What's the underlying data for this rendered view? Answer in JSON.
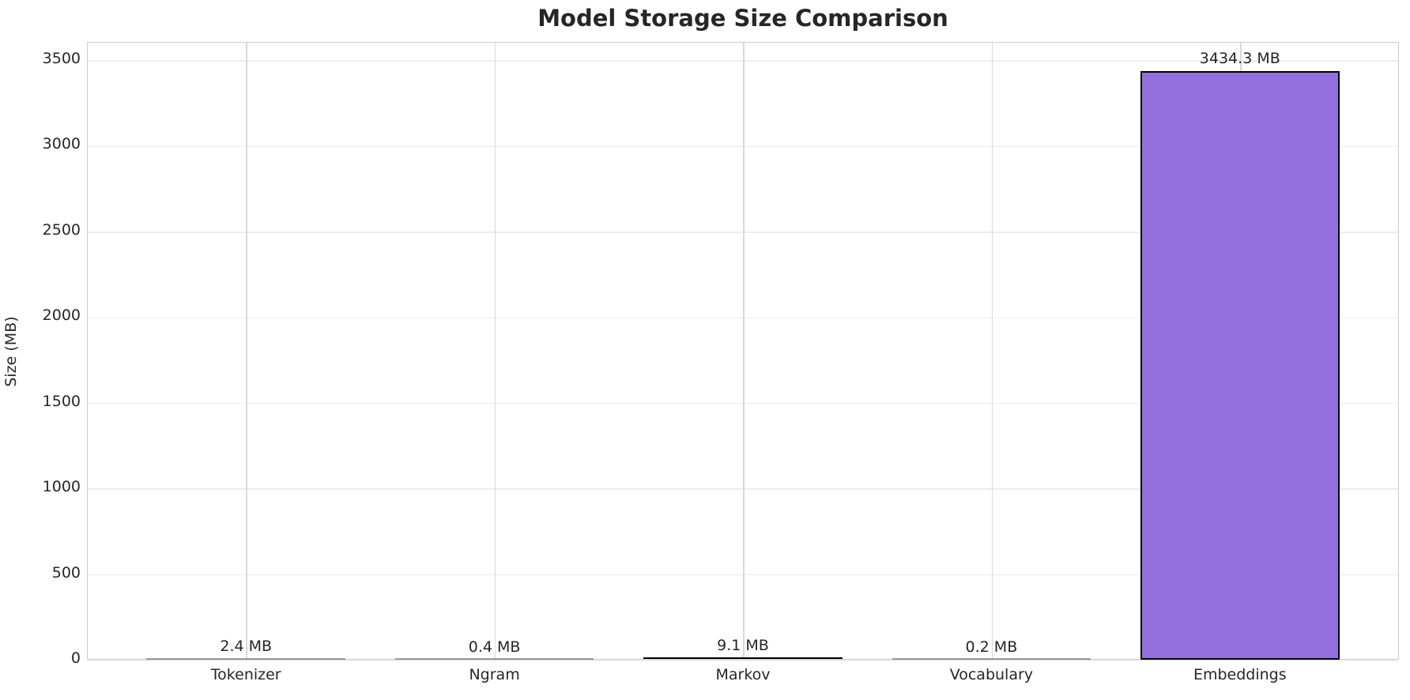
{
  "chart_data": {
    "type": "bar",
    "title": "Model Storage Size Comparison",
    "xlabel": "",
    "ylabel": "Size (MB)",
    "categories": [
      "Tokenizer",
      "Ngram",
      "Markov",
      "Vocabulary",
      "Embeddings"
    ],
    "values": [
      2.4,
      0.4,
      9.1,
      0.2,
      3434.3
    ],
    "bar_labels": [
      "2.4 MB",
      "0.4 MB",
      "9.1 MB",
      "0.2 MB",
      "3434.3 MB"
    ],
    "yticks": [
      0,
      500,
      1000,
      1500,
      2000,
      2500,
      3000,
      3500
    ],
    "ylim": [
      0,
      3606
    ],
    "grid": true,
    "legend": null,
    "colors": {
      "bar_fill": "#9370DB",
      "bar_edge": "#000000",
      "title_text": "#262626",
      "tick_text": "#262626",
      "h_grid": "#ececec",
      "v_grid": "#d9d9d9",
      "spine": "#cccccc",
      "background": "#ffffff"
    }
  }
}
